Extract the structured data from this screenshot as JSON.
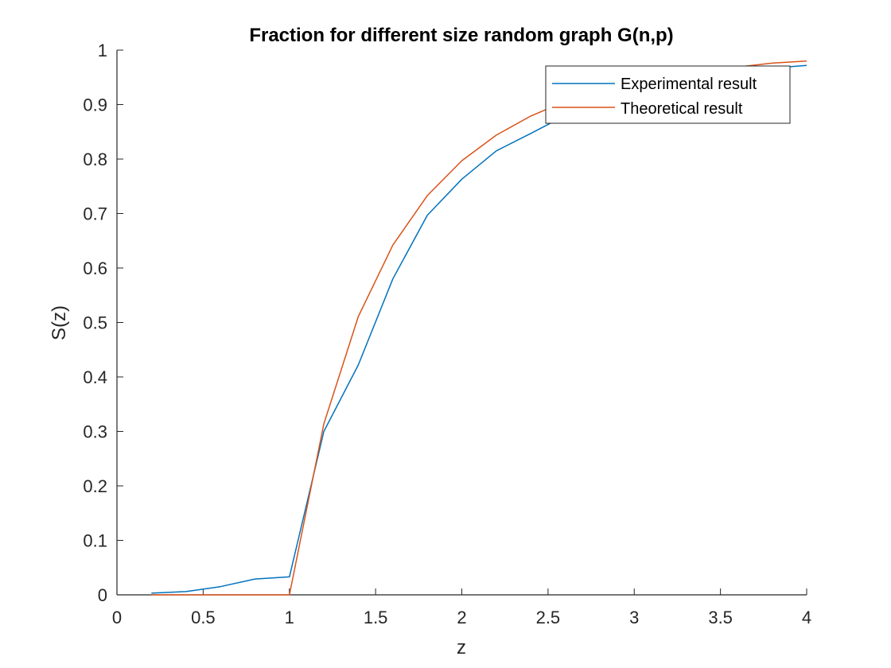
{
  "chart_data": {
    "type": "line",
    "title": "Fraction for different size random graph G(n,p)",
    "xlabel": "z",
    "ylabel": "S(z)",
    "xlim": [
      0,
      4
    ],
    "ylim": [
      0,
      1
    ],
    "xticks": [
      "0",
      "0.5",
      "1",
      "1.5",
      "2",
      "2.5",
      "3",
      "3.5",
      "4"
    ],
    "xtick_values": [
      0,
      0.5,
      1,
      1.5,
      2,
      2.5,
      3,
      3.5,
      4
    ],
    "yticks": [
      "0",
      "0.1",
      "0.2",
      "0.3",
      "0.4",
      "0.5",
      "0.6",
      "0.7",
      "0.8",
      "0.9",
      "1"
    ],
    "ytick_values": [
      0,
      0.1,
      0.2,
      0.3,
      0.4,
      0.5,
      0.6,
      0.7,
      0.8,
      0.9,
      1
    ],
    "grid": false,
    "legend_position": "top-right",
    "x": [
      0.2,
      0.4,
      0.6,
      0.8,
      1.0,
      1.2,
      1.4,
      1.6,
      1.8,
      2.0,
      2.2,
      2.4,
      2.6,
      2.8,
      3.0,
      3.2,
      3.4,
      3.6,
      3.8,
      4.0
    ],
    "series": [
      {
        "name": "Experimental result",
        "color": "#0072BD",
        "values": [
          0.003,
          0.006,
          0.015,
          0.029,
          0.033,
          0.3,
          0.422,
          0.58,
          0.697,
          0.763,
          0.815,
          0.847,
          0.88,
          0.907,
          0.925,
          0.94,
          0.952,
          0.961,
          0.967,
          0.972
        ]
      },
      {
        "name": "Theoretical result",
        "color": "#D95319",
        "values": [
          0,
          0,
          0,
          0,
          0,
          0.314,
          0.511,
          0.642,
          0.733,
          0.797,
          0.844,
          0.879,
          0.906,
          0.926,
          0.941,
          0.953,
          0.962,
          0.969,
          0.976,
          0.98
        ]
      }
    ]
  }
}
